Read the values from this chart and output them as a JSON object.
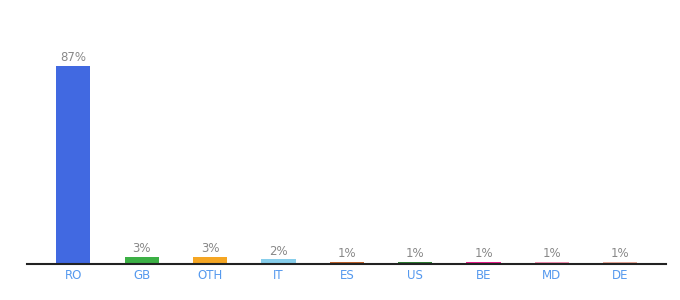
{
  "categories": [
    "RO",
    "GB",
    "OTH",
    "IT",
    "ES",
    "US",
    "BE",
    "MD",
    "DE"
  ],
  "values": [
    87,
    3,
    3,
    2,
    1,
    1,
    1,
    1,
    1
  ],
  "bar_colors": [
    "#4169e1",
    "#3cb045",
    "#f5a623",
    "#87ceeb",
    "#c0622a",
    "#2e7d32",
    "#e91e8c",
    "#f48fb1",
    "#e8a898"
  ],
  "labels": [
    "87%",
    "3%",
    "3%",
    "2%",
    "1%",
    "1%",
    "1%",
    "1%",
    "1%"
  ],
  "ylim": [
    0,
    100
  ],
  "background_color": "#ffffff",
  "label_fontsize": 8.5,
  "tick_fontsize": 8.5,
  "label_color": "#888888",
  "tick_color": "#5599ee",
  "bar_width": 0.5
}
